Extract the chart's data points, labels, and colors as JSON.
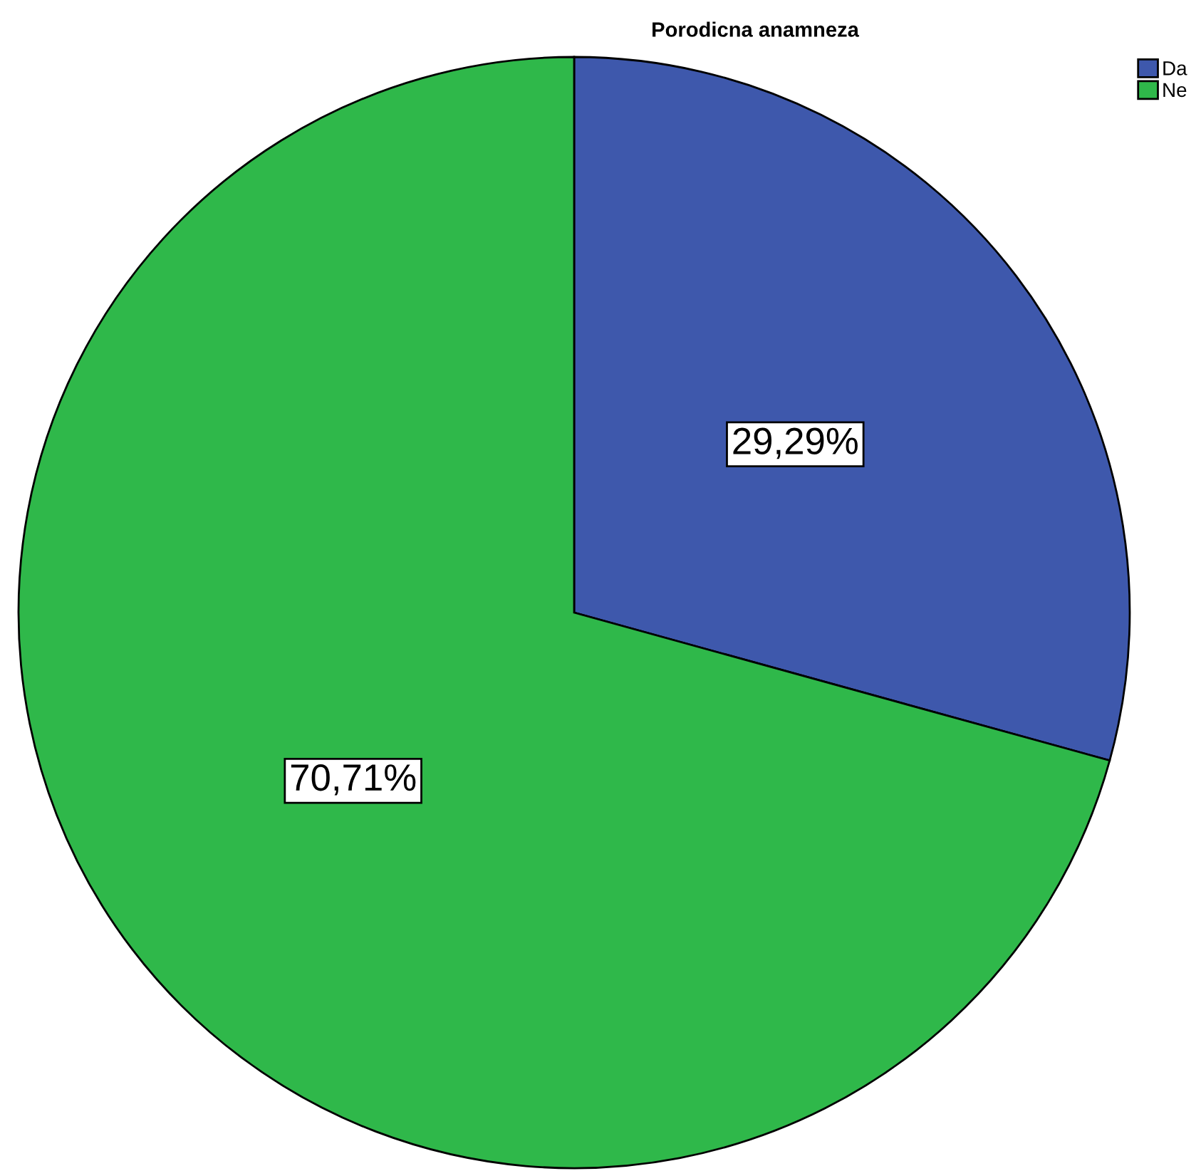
{
  "chart_data": {
    "type": "pie",
    "title": "Porodicna anamneza",
    "categories": [
      "Da",
      "Ne"
    ],
    "values": [
      29.29,
      70.71
    ],
    "colors": [
      "#3e58ac",
      "#2fb84a"
    ],
    "value_labels": [
      "29,29%",
      "70,71%"
    ],
    "legend": "top right"
  }
}
